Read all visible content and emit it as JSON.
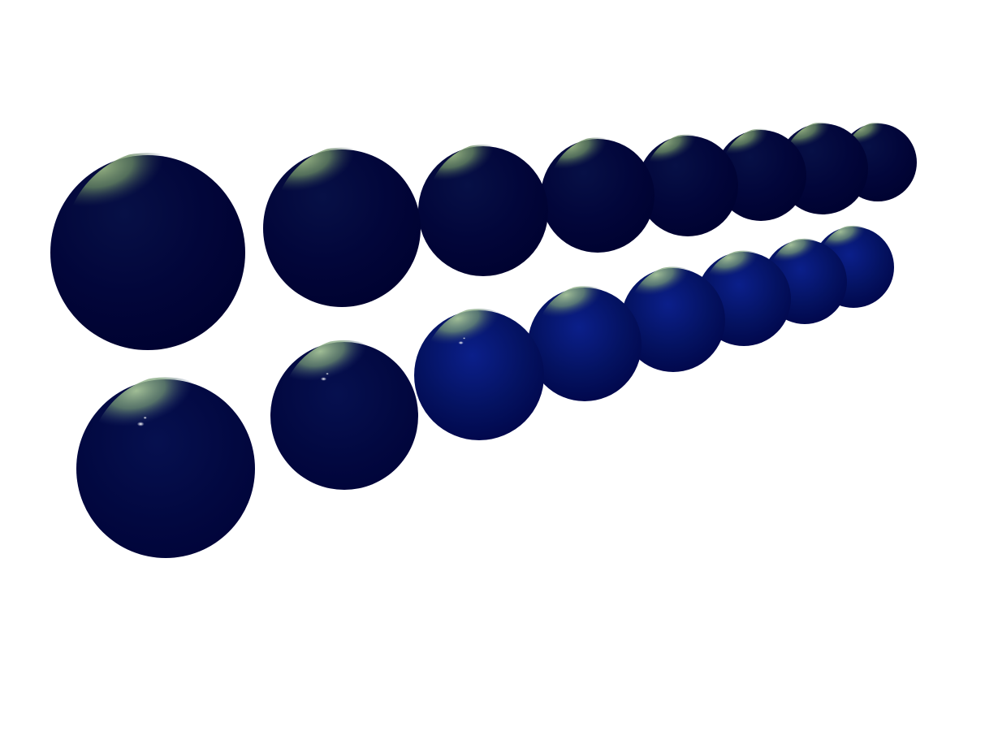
{
  "scene": {
    "description_free": true,
    "background_color": "#ffffff",
    "rows": [
      {
        "name": "top-row",
        "sphere_count": 8,
        "base_color": "#00002f",
        "rim_highlight_color": "#8fb07a",
        "specular_color": "#6f8f62",
        "sharp_specular": false
      },
      {
        "name": "bottom-row",
        "sphere_count": 8,
        "base_color": "#000045",
        "mid_tone_color": "#0a1f90",
        "rim_highlight_color": "#9cc08c",
        "specular_color": "#ffffff",
        "sharp_specular": true
      }
    ]
  }
}
